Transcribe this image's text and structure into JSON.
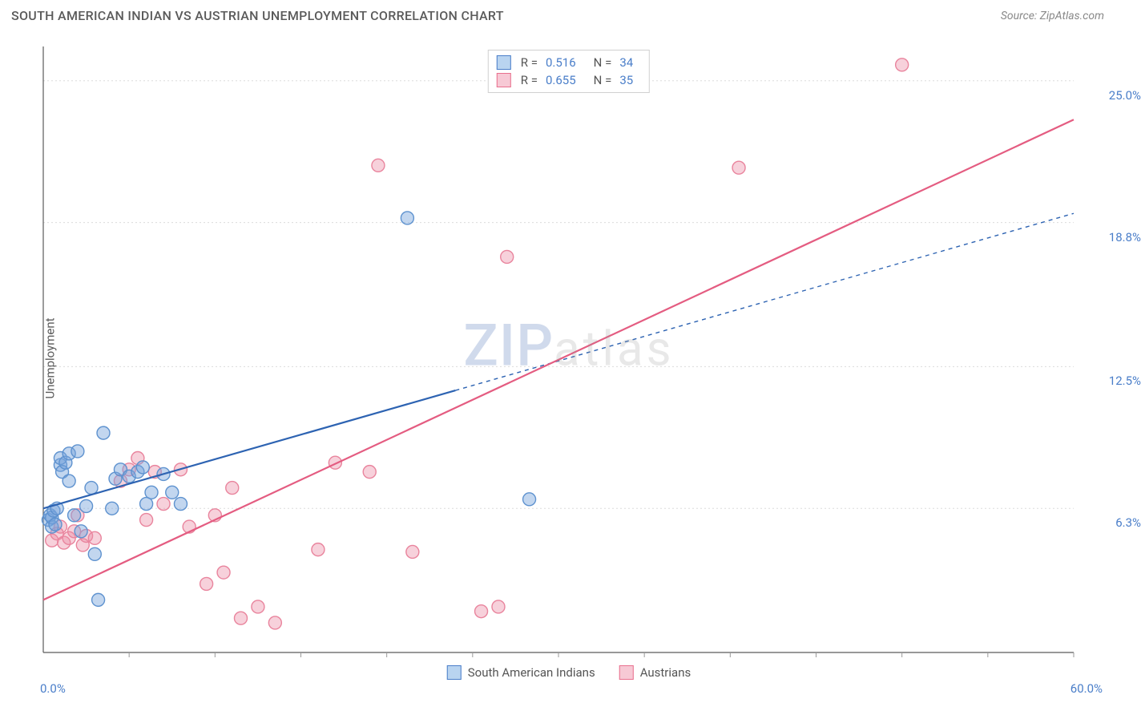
{
  "header": {
    "title": "SOUTH AMERICAN INDIAN VS AUSTRIAN UNEMPLOYMENT CORRELATION CHART",
    "source": "Source: ZipAtlas.com"
  },
  "watermark": {
    "part1": "ZIP",
    "part2": "atlas"
  },
  "chart": {
    "type": "scatter",
    "background_color": "#ffffff",
    "grid_color": "#dcdcdc",
    "axis_color": "#5a5a5a",
    "tick_color": "#999999",
    "y_axis_label": "Unemployment",
    "xlim": [
      0,
      60
    ],
    "ylim": [
      0,
      26.5
    ],
    "x_ticks_minor": [
      5,
      10,
      15,
      20,
      25,
      30,
      35,
      40,
      45,
      50,
      55,
      60
    ],
    "x_tick_labels": {
      "left": "0.0%",
      "right": "60.0%"
    },
    "y_gridlines": [
      6.3,
      12.5,
      18.8,
      25.0
    ],
    "y_tick_labels": [
      "6.3%",
      "12.5%",
      "18.8%",
      "25.0%"
    ],
    "marker_radius": 8,
    "marker_stroke_width": 1.4,
    "line_width": 2.2,
    "series": [
      {
        "name": "South American Indians",
        "swatch_fill": "#b9d4f0",
        "swatch_stroke": "#4a7ec9",
        "marker_fill": "rgba(120,165,220,0.45)",
        "marker_stroke": "#5e92cf",
        "line_color": "#2d63b2",
        "line_dash_tail": "5,5",
        "trend": {
          "x1": 0,
          "y1": 6.3,
          "x2": 60,
          "y2": 19.2,
          "solid_until_x": 24
        },
        "stats": {
          "R": "0.516",
          "N": "34"
        },
        "points": [
          [
            0.3,
            5.8
          ],
          [
            0.4,
            6.0
          ],
          [
            0.5,
            5.5
          ],
          [
            0.5,
            5.9
          ],
          [
            0.6,
            6.2
          ],
          [
            0.7,
            5.6
          ],
          [
            0.8,
            6.3
          ],
          [
            1.0,
            8.2
          ],
          [
            1.0,
            8.5
          ],
          [
            1.1,
            7.9
          ],
          [
            1.3,
            8.3
          ],
          [
            1.5,
            7.5
          ],
          [
            1.5,
            8.7
          ],
          [
            2.0,
            8.8
          ],
          [
            2.2,
            5.3
          ],
          [
            2.5,
            6.4
          ],
          [
            3.0,
            4.3
          ],
          [
            3.5,
            9.6
          ],
          [
            4.0,
            6.3
          ],
          [
            4.2,
            7.6
          ],
          [
            4.5,
            8.0
          ],
          [
            5.0,
            7.7
          ],
          [
            5.5,
            7.9
          ],
          [
            5.8,
            8.1
          ],
          [
            6.0,
            6.5
          ],
          [
            6.3,
            7.0
          ],
          [
            7.0,
            7.8
          ],
          [
            7.5,
            7.0
          ],
          [
            8.0,
            6.5
          ],
          [
            3.2,
            2.3
          ],
          [
            21.2,
            19.0
          ],
          [
            28.3,
            6.7
          ],
          [
            2.8,
            7.2
          ],
          [
            1.8,
            6.0
          ]
        ]
      },
      {
        "name": "Austrians",
        "swatch_fill": "#f7c9d5",
        "swatch_stroke": "#e9708e",
        "marker_fill": "rgba(235,140,165,0.40)",
        "marker_stroke": "#e9849d",
        "line_color": "#e45c81",
        "line_dash_tail": "none",
        "trend": {
          "x1": 0,
          "y1": 2.3,
          "x2": 60,
          "y2": 23.3,
          "solid_until_x": 60
        },
        "stats": {
          "R": "0.655",
          "N": "35"
        },
        "points": [
          [
            0.5,
            4.9
          ],
          [
            0.8,
            5.2
          ],
          [
            1.0,
            5.5
          ],
          [
            1.2,
            4.8
          ],
          [
            1.5,
            5.0
          ],
          [
            1.8,
            5.3
          ],
          [
            2.0,
            6.0
          ],
          [
            2.3,
            4.7
          ],
          [
            2.5,
            5.1
          ],
          [
            3.0,
            5.0
          ],
          [
            4.5,
            7.5
          ],
          [
            5.0,
            8.0
          ],
          [
            5.5,
            8.5
          ],
          [
            6.0,
            5.8
          ],
          [
            6.5,
            7.9
          ],
          [
            7.0,
            6.5
          ],
          [
            8.0,
            8.0
          ],
          [
            8.5,
            5.5
          ],
          [
            9.5,
            3.0
          ],
          [
            10.0,
            6.0
          ],
          [
            10.5,
            3.5
          ],
          [
            11.0,
            7.2
          ],
          [
            11.5,
            1.5
          ],
          [
            12.5,
            2.0
          ],
          [
            13.5,
            1.3
          ],
          [
            16.0,
            4.5
          ],
          [
            17.0,
            8.3
          ],
          [
            19.0,
            7.9
          ],
          [
            19.5,
            21.3
          ],
          [
            21.5,
            4.4
          ],
          [
            25.5,
            1.8
          ],
          [
            26.5,
            2.0
          ],
          [
            27.0,
            17.3
          ],
          [
            40.5,
            21.2
          ],
          [
            50.0,
            25.7
          ]
        ]
      }
    ],
    "legend_top": {
      "r_label": "R  =",
      "n_label": "N  ="
    },
    "legend_bottom_labels": [
      "South American Indians",
      "Austrians"
    ]
  }
}
